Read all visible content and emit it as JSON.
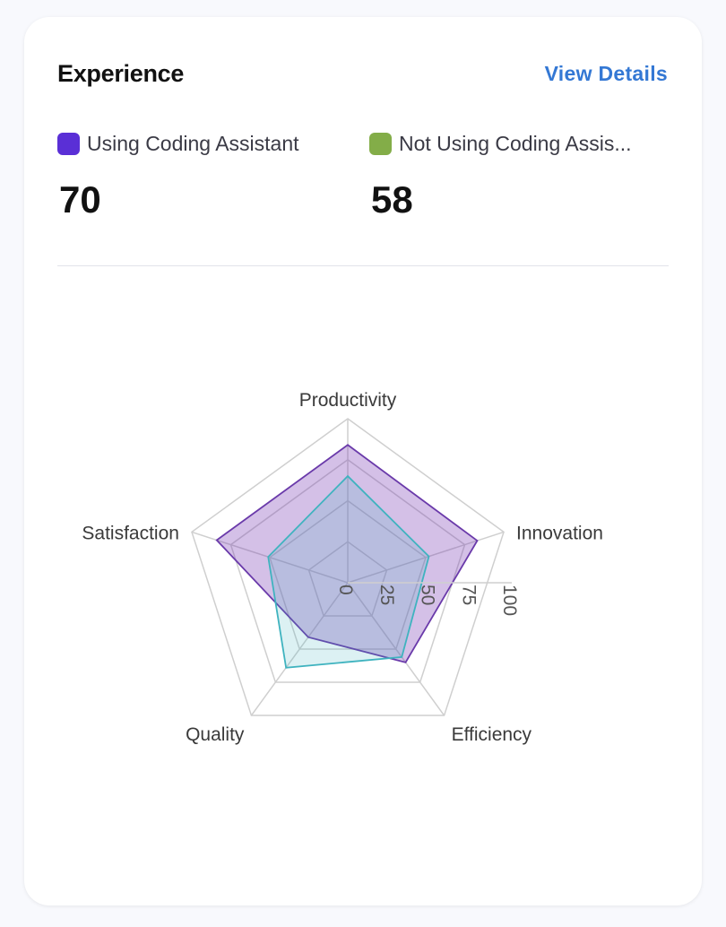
{
  "header": {
    "title": "Experience",
    "view_details": "View Details"
  },
  "legend": [
    {
      "label": "Using Coding Assistant",
      "value": "70",
      "color": "#5a2fd6"
    },
    {
      "label": "Not Using Coding Assis...",
      "value": "58",
      "color": "#83ad48"
    }
  ],
  "chart_data": {
    "type": "radar",
    "axes": [
      "Productivity",
      "Innovation",
      "Efficiency",
      "Quality",
      "Satisfaction"
    ],
    "radial_ticks": [
      "0",
      "25",
      "50",
      "75",
      "100"
    ],
    "range": [
      0,
      100
    ],
    "series": [
      {
        "name": "Using Coding Assistant",
        "values": [
          84,
          83,
          60,
          41,
          84
        ],
        "color": "#6a3aaa"
      },
      {
        "name": "Not Using Coding Assis...",
        "values": [
          65,
          52,
          56,
          64,
          51
        ],
        "color": "#3fb3bf"
      }
    ]
  }
}
